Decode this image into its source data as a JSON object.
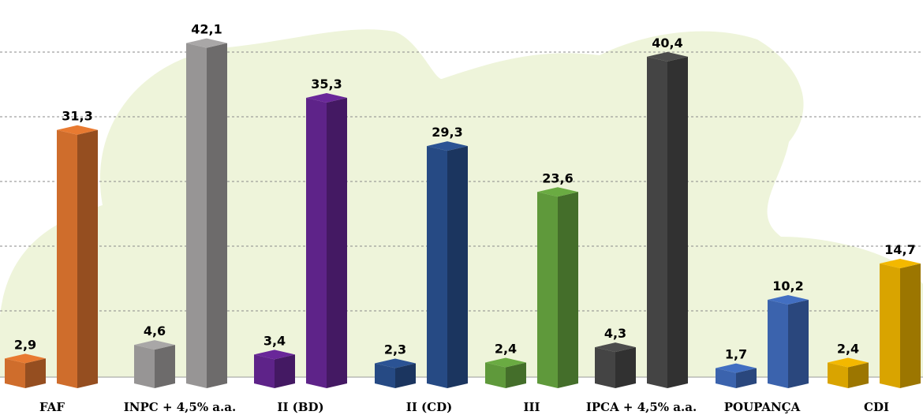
{
  "chart_data": {
    "type": "bar",
    "title": "",
    "xlabel": "",
    "ylabel": "",
    "ylim": [
      0,
      48
    ],
    "grid": true,
    "legend": "none",
    "categories": [
      "FAF",
      "INPC + 4,5% a.a.",
      "II (BD)",
      "II (CD)",
      "III",
      "IPCA + 4,5% a.a.",
      "POUPANÇA",
      "CDI"
    ],
    "groups": [
      {
        "small": 2.9,
        "small_label": "2,9",
        "tall": 31.3,
        "tall_label": "31,3",
        "color": "#cf6d2c",
        "small_color": "#cf6d2c"
      },
      {
        "small": 4.6,
        "small_label": "4,6",
        "tall": 42.1,
        "tall_label": "42,1",
        "color": "#979595",
        "small_color": "#979595"
      },
      {
        "small": 3.4,
        "small_label": "3,4",
        "tall": 35.3,
        "tall_label": "35,3",
        "color": "#5e2389",
        "small_color": "#5e2389"
      },
      {
        "small": 2.3,
        "small_label": "2,3",
        "tall": 29.3,
        "tall_label": "29,3",
        "color": "#264a84",
        "small_color": "#264a84"
      },
      {
        "small": 2.4,
        "small_label": "2,4",
        "tall": 23.6,
        "tall_label": "23,6",
        "color": "#5f993b",
        "small_color": "#5f993b"
      },
      {
        "small": 4.3,
        "small_label": "4,3",
        "tall": 40.4,
        "tall_label": "40,4",
        "color": "#444444",
        "small_color": "#444444"
      },
      {
        "small": 1.7,
        "small_label": "1,7",
        "tall": 10.2,
        "tall_label": "10,2",
        "color": "#3b63ad",
        "small_color": "#3b63ad"
      },
      {
        "small": 2.4,
        "small_label": "2,4",
        "tall": 14.7,
        "tall_label": "14,7",
        "color": "#d9a400",
        "small_color": "#d9a400"
      }
    ],
    "background_color": "#eef4da",
    "grid_color": "#8a8a8a"
  }
}
